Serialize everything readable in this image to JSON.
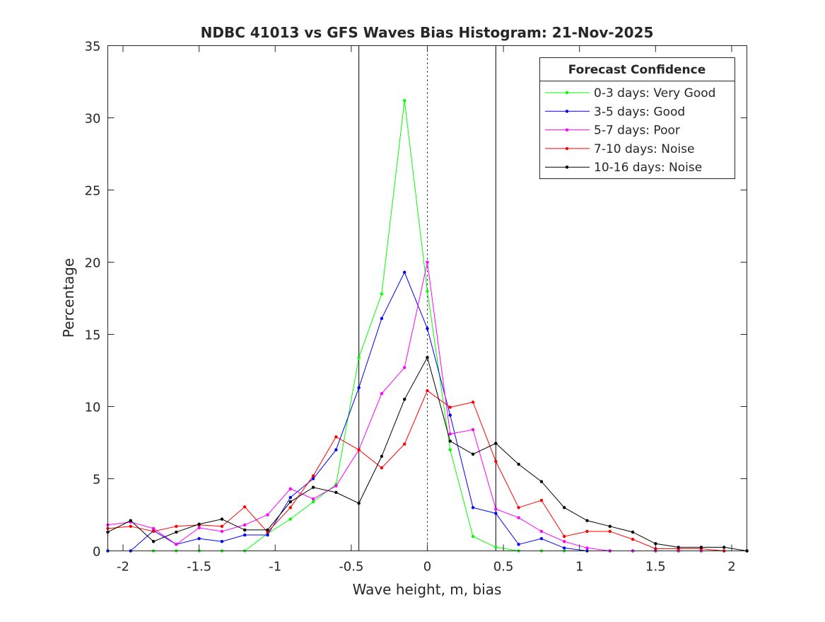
{
  "chart_data": {
    "type": "line",
    "title": "NDBC 41013 vs GFS Waves Bias Histogram: 21-Nov-2025",
    "xlabel": "Wave height, m, bias",
    "ylabel": "Percentage",
    "xlim": [
      -2.1,
      2.1
    ],
    "ylim": [
      0,
      35
    ],
    "xticks": [
      -2,
      -1.5,
      -1,
      -0.5,
      0,
      0.5,
      1,
      1.5,
      2
    ],
    "xtick_labels": [
      "-2",
      "-1.5",
      "-1",
      "-0.5",
      "0",
      "0.5",
      "1",
      "1.5",
      "2"
    ],
    "yticks": [
      0,
      5,
      10,
      15,
      20,
      25,
      30,
      35
    ],
    "ytick_labels": [
      "0",
      "5",
      "10",
      "15",
      "20",
      "25",
      "30",
      "35"
    ],
    "grid": false,
    "vlines": [
      {
        "x": -0.45,
        "style": "solid"
      },
      {
        "x": 0,
        "style": "dotted"
      },
      {
        "x": 0.45,
        "style": "solid"
      }
    ],
    "legend": {
      "title": "Forecast Confidence",
      "placement": "top-right"
    },
    "x": [
      -2.1,
      -1.95,
      -1.8,
      -1.65,
      -1.5,
      -1.35,
      -1.2,
      -1.05,
      -0.9,
      -0.75,
      -0.6,
      -0.45,
      -0.3,
      -0.15,
      0,
      0.15,
      0.3,
      0.45,
      0.6,
      0.75,
      0.9,
      1.05,
      1.2,
      1.35,
      1.5,
      1.65,
      1.8,
      1.95,
      2.1
    ],
    "series": [
      {
        "name": "0-3 days: Very Good",
        "color": "#00ff00",
        "values": [
          0,
          0,
          0,
          0,
          0,
          0,
          0,
          1.2,
          2.2,
          3.4,
          4.6,
          13.4,
          17.8,
          31.2,
          18.0,
          7.0,
          1.0,
          0.25,
          0,
          0,
          0,
          0,
          0,
          0,
          0,
          0,
          0,
          0,
          0
        ]
      },
      {
        "name": "3-5 days: Good",
        "color": "#0000ff",
        "values": [
          0,
          0,
          1.4,
          0.45,
          0.85,
          0.65,
          1.1,
          1.1,
          3.7,
          5.0,
          7.0,
          11.3,
          16.1,
          19.3,
          15.4,
          9.4,
          3.0,
          2.6,
          0.45,
          0.85,
          0.2,
          0,
          0,
          0,
          0,
          0,
          0,
          0,
          0
        ]
      },
      {
        "name": "5-7 days: Poor",
        "color": "#ff00ff",
        "values": [
          1.8,
          2.0,
          1.55,
          0.45,
          1.6,
          1.35,
          1.8,
          2.5,
          4.3,
          3.6,
          4.5,
          7.0,
          10.9,
          12.7,
          20.0,
          8.1,
          8.4,
          2.9,
          2.3,
          1.35,
          0.65,
          0.2,
          0,
          0,
          0,
          0,
          0,
          0,
          0
        ]
      },
      {
        "name": "7-10 days: Noise",
        "color": "#ff0000",
        "values": [
          1.55,
          1.7,
          1.35,
          1.7,
          1.8,
          1.7,
          3.05,
          1.3,
          3.0,
          5.2,
          7.9,
          7.0,
          5.75,
          7.4,
          11.1,
          9.95,
          10.3,
          6.2,
          3.0,
          3.5,
          1.0,
          1.35,
          1.35,
          0.8,
          0.15,
          0.15,
          0.15,
          0,
          0
        ]
      },
      {
        "name": "10-16 days: Noise",
        "color": "#000000",
        "values": [
          1.3,
          2.1,
          0.65,
          1.3,
          1.85,
          2.2,
          1.45,
          1.45,
          3.4,
          4.4,
          4.05,
          3.3,
          6.55,
          10.5,
          13.4,
          7.6,
          6.7,
          7.45,
          6.0,
          4.8,
          3.0,
          2.1,
          1.7,
          1.3,
          0.5,
          0.25,
          0.25,
          0.25,
          0
        ]
      }
    ]
  }
}
